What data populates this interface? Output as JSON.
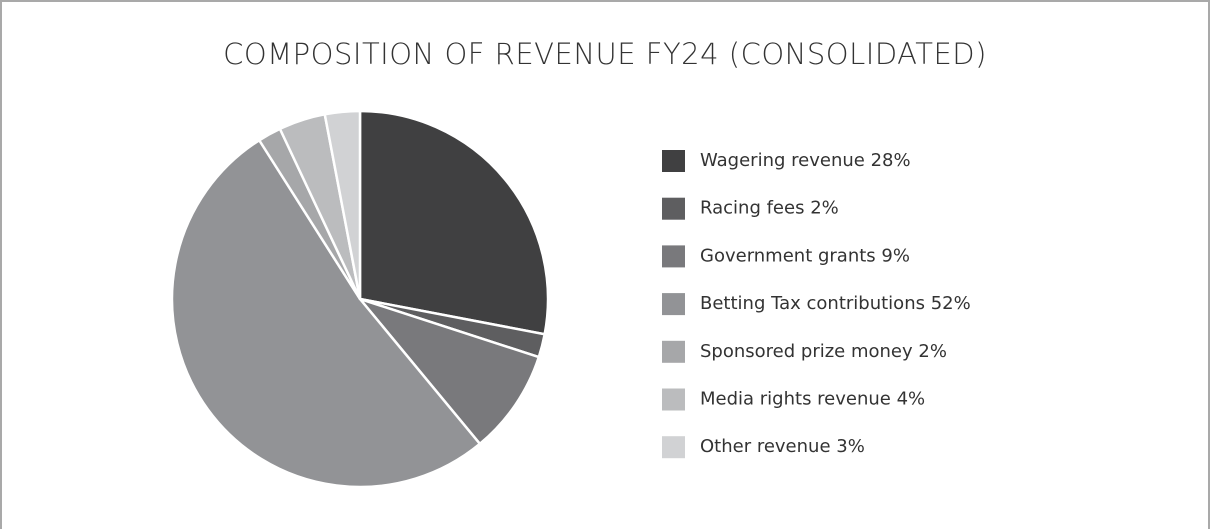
{
  "chart_data": {
    "type": "pie",
    "title": "COMPOSITION OF REVENUE FY24 (CONSOLIDATED)",
    "categories": [
      "Wagering revenue",
      "Racing fees",
      "Government grants",
      "Betting Tax contributions",
      "Sponsored prize money",
      "Media rights revenue",
      "Other revenue"
    ],
    "values": [
      28,
      2,
      9,
      52,
      2,
      4,
      3
    ],
    "value_labels": [
      "28%",
      "2%",
      "9%",
      "52%",
      "2%",
      "4%",
      "3%"
    ],
    "colors": [
      "#404041",
      "#5e5e60",
      "#79797c",
      "#929396",
      "#a6a7a9",
      "#bbbcbe",
      "#d1d2d4"
    ],
    "legend": "right"
  }
}
